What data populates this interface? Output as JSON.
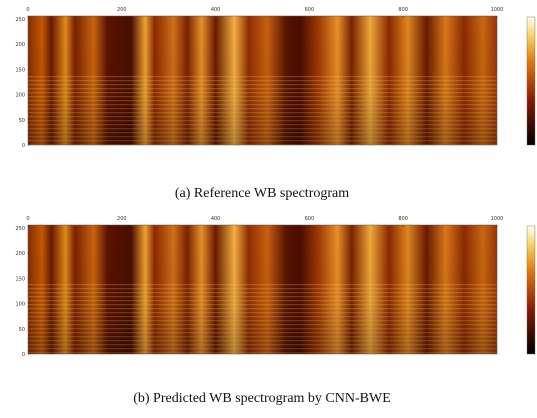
{
  "chart_data": [
    {
      "type": "heatmap",
      "caption": "(a) Reference WB spectrogram",
      "xlim": [
        0,
        1000
      ],
      "ylim": [
        0,
        256
      ],
      "xticks": [
        0,
        200,
        400,
        600,
        800,
        1000
      ],
      "yticks": [
        0,
        50,
        100,
        150,
        200,
        250
      ]
    },
    {
      "type": "heatmap",
      "caption": "(b) Predicted WB spectrogram by CNN-BWE",
      "xlim": [
        0,
        1000
      ],
      "ylim": [
        0,
        256
      ],
      "xticks": [
        0,
        200,
        400,
        600,
        800,
        1000
      ],
      "yticks": [
        0,
        50,
        100,
        150,
        200,
        250
      ]
    }
  ]
}
